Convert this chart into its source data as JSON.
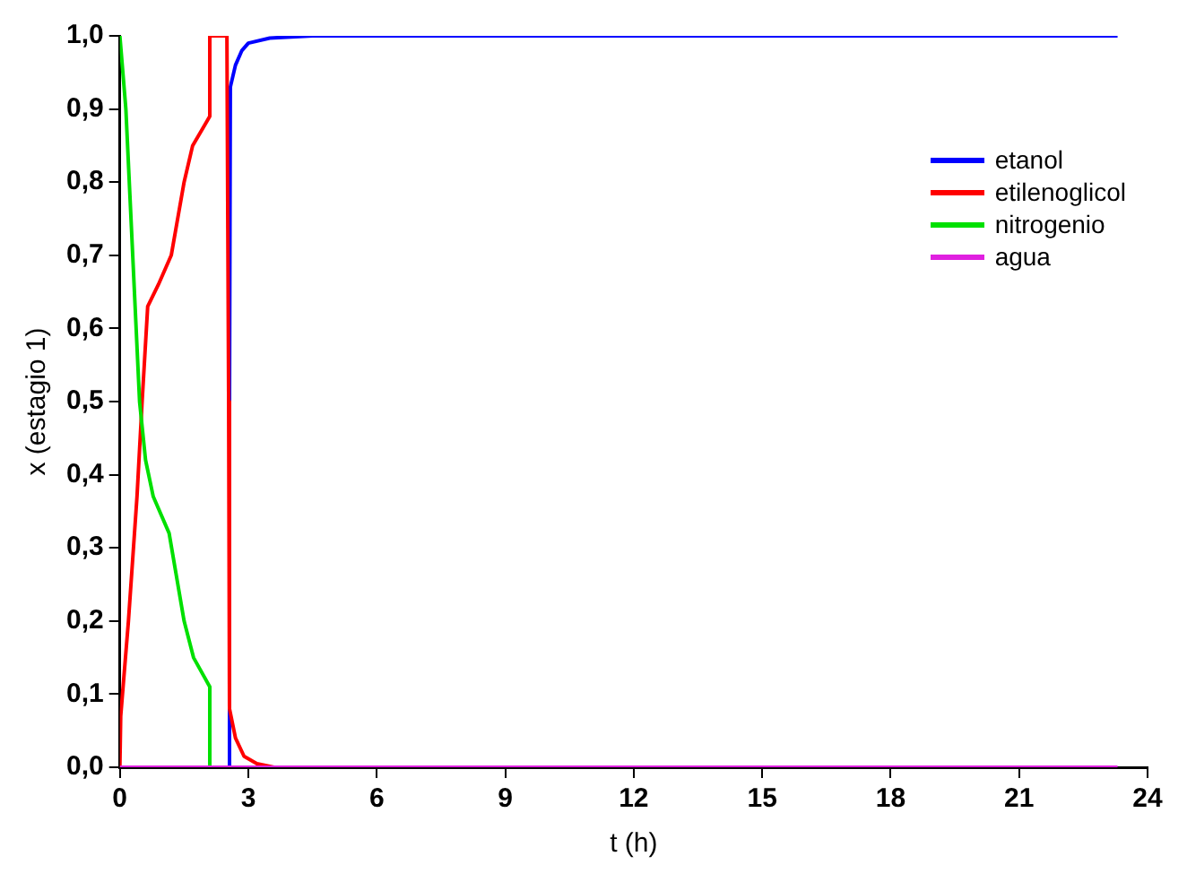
{
  "chart_data": {
    "type": "line",
    "xlabel": "t (h)",
    "ylabel": "x (estagio 1)",
    "xlim": [
      0,
      24
    ],
    "xticks": [
      0,
      3,
      6,
      9,
      12,
      15,
      18,
      21,
      24
    ],
    "ylim": [
      0,
      1
    ],
    "yticks": [
      {
        "value": 0,
        "label": "0,0"
      },
      {
        "value": 0.1,
        "label": "0,1"
      },
      {
        "value": 0.2,
        "label": "0,2"
      },
      {
        "value": 0.3,
        "label": "0,3"
      },
      {
        "value": 0.4,
        "label": "0,4"
      },
      {
        "value": 0.5,
        "label": "0,5"
      },
      {
        "value": 0.6,
        "label": "0,6"
      },
      {
        "value": 0.7,
        "label": "0,7"
      },
      {
        "value": 0.8,
        "label": "0,8"
      },
      {
        "value": 0.9,
        "label": "0,9"
      },
      {
        "value": 1,
        "label": "1,0"
      }
    ],
    "grid": false,
    "legend": "top right",
    "marker": "none",
    "line_style": "solid",
    "series": [
      {
        "name": "etanol",
        "color": "#0000ff",
        "x": [
          0,
          2.55,
          2.56,
          2.58,
          2.7,
          2.85,
          3.0,
          3.5,
          4.5,
          23.3
        ],
        "values": [
          0,
          0,
          0.5,
          0.93,
          0.96,
          0.98,
          0.99,
          0.997,
          1,
          1
        ]
      },
      {
        "name": "etilenoglicol",
        "color": "#ff0000",
        "x": [
          0,
          0.02,
          0.2,
          0.4,
          0.52,
          0.65,
          0.9,
          1.2,
          1.5,
          1.7,
          2.0,
          2.1,
          2.1,
          2.5,
          2.54,
          2.56,
          2.7,
          2.9,
          3.2,
          3.6
        ],
        "values": [
          0,
          0.07,
          0.2,
          0.37,
          0.5,
          0.63,
          0.66,
          0.7,
          0.8,
          0.85,
          0.88,
          0.89,
          1,
          1,
          0.5,
          0.08,
          0.04,
          0.015,
          0.005,
          0
        ]
      },
      {
        "name": "nitrogenio",
        "color": "#00e000",
        "x": [
          0,
          0.14,
          0.3,
          0.46,
          0.6,
          0.78,
          1.15,
          1.5,
          1.72,
          2.1,
          2.1
        ],
        "values": [
          1,
          0.9,
          0.7,
          0.5,
          0.42,
          0.37,
          0.32,
          0.2,
          0.15,
          0.11,
          0
        ]
      },
      {
        "name": "agua",
        "color": "#e020e0",
        "x": [
          0,
          23.3
        ],
        "values": [
          0,
          0
        ]
      }
    ]
  }
}
